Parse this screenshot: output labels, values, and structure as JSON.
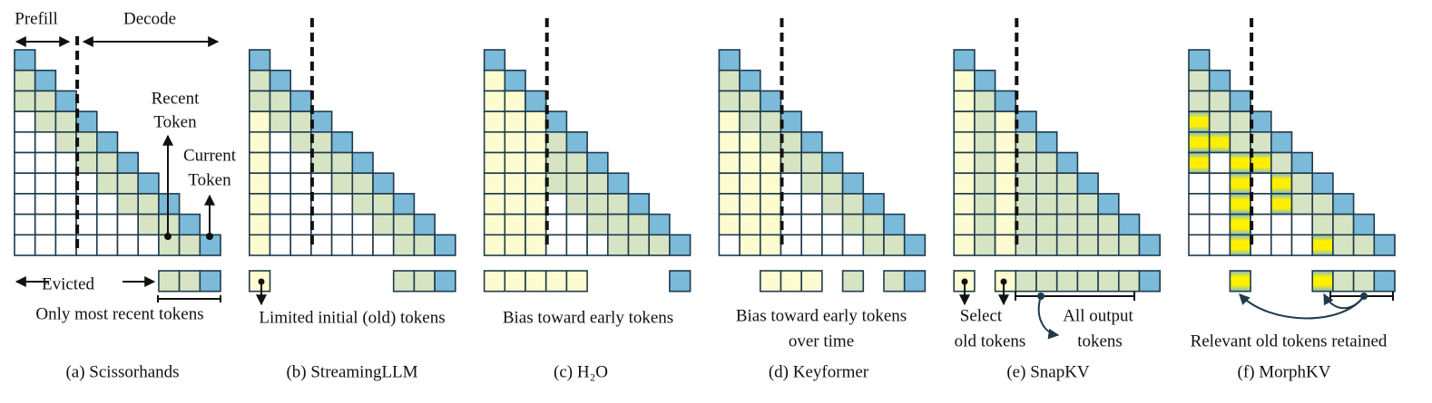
{
  "header": {
    "prefill": "Prefill",
    "decode": "Decode"
  },
  "annotations": {
    "recent_1": "Recent",
    "recent_2": "Token",
    "current_1": "Current",
    "current_2": "Token",
    "evicted": "Evicted"
  },
  "panels": [
    {
      "desc": [
        "Only most recent tokens"
      ],
      "caption": "(a) Scissorhands"
    },
    {
      "desc": [
        "Limited initial (old) tokens"
      ],
      "caption": "(b) StreamingLLM"
    },
    {
      "desc": [
        "Bias toward early tokens"
      ],
      "caption": "(c) H₂O"
    },
    {
      "desc": [
        "Bias toward early tokens",
        "over time"
      ],
      "caption": "(d) Keyformer"
    },
    {
      "desc": [
        "Select",
        "old tokens",
        "All output",
        "tokens"
      ],
      "caption": "(e) SnapKV"
    },
    {
      "desc": [
        "Relevant old tokens retained"
      ],
      "caption": "(f) MorphKV"
    }
  ]
}
